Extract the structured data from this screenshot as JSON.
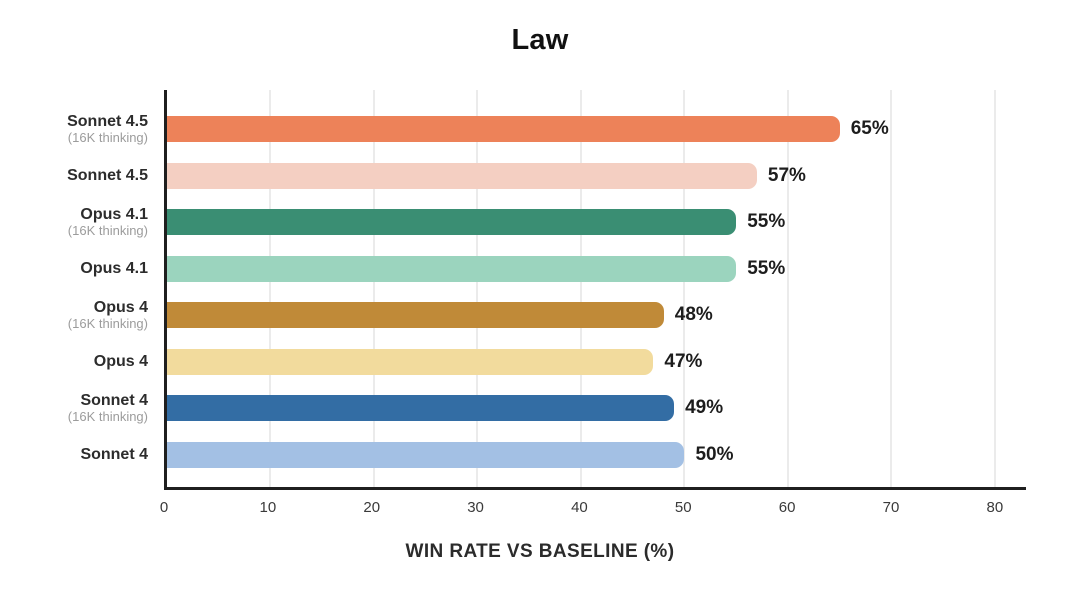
{
  "chart_data": {
    "type": "bar",
    "orientation": "horizontal",
    "title": "Law",
    "xlabel": "WIN RATE VS BASELINE (%)",
    "x_ticks": [
      0,
      10,
      20,
      30,
      40,
      50,
      60,
      70,
      80
    ],
    "xlim": [
      0,
      83
    ],
    "grid": true,
    "legend": false,
    "axis_color": "#1f1f1f",
    "grid_color": "#ebebeb",
    "bars": [
      {
        "label": "Sonnet 4.5",
        "sublabel": "(16K thinking)",
        "value": 65,
        "value_label": "65%",
        "color": "#ED8259"
      },
      {
        "label": "Sonnet 4.5",
        "sublabel": "",
        "value": 57,
        "value_label": "57%",
        "color": "#F4CFC2"
      },
      {
        "label": "Opus 4.1",
        "sublabel": "(16K thinking)",
        "value": 55,
        "value_label": "55%",
        "color": "#3A8E73"
      },
      {
        "label": "Opus 4.1",
        "sublabel": "",
        "value": 55,
        "value_label": "55%",
        "color": "#9BD4BE"
      },
      {
        "label": "Opus 4",
        "sublabel": "(16K thinking)",
        "value": 48,
        "value_label": "48%",
        "color": "#C08A38"
      },
      {
        "label": "Opus 4",
        "sublabel": "",
        "value": 47,
        "value_label": "47%",
        "color": "#F2DB9D"
      },
      {
        "label": "Sonnet 4",
        "sublabel": "(16K thinking)",
        "value": 49,
        "value_label": "49%",
        "color": "#336DA4"
      },
      {
        "label": "Sonnet 4",
        "sublabel": "",
        "value": 50,
        "value_label": "50%",
        "color": "#A3C0E4"
      }
    ]
  }
}
